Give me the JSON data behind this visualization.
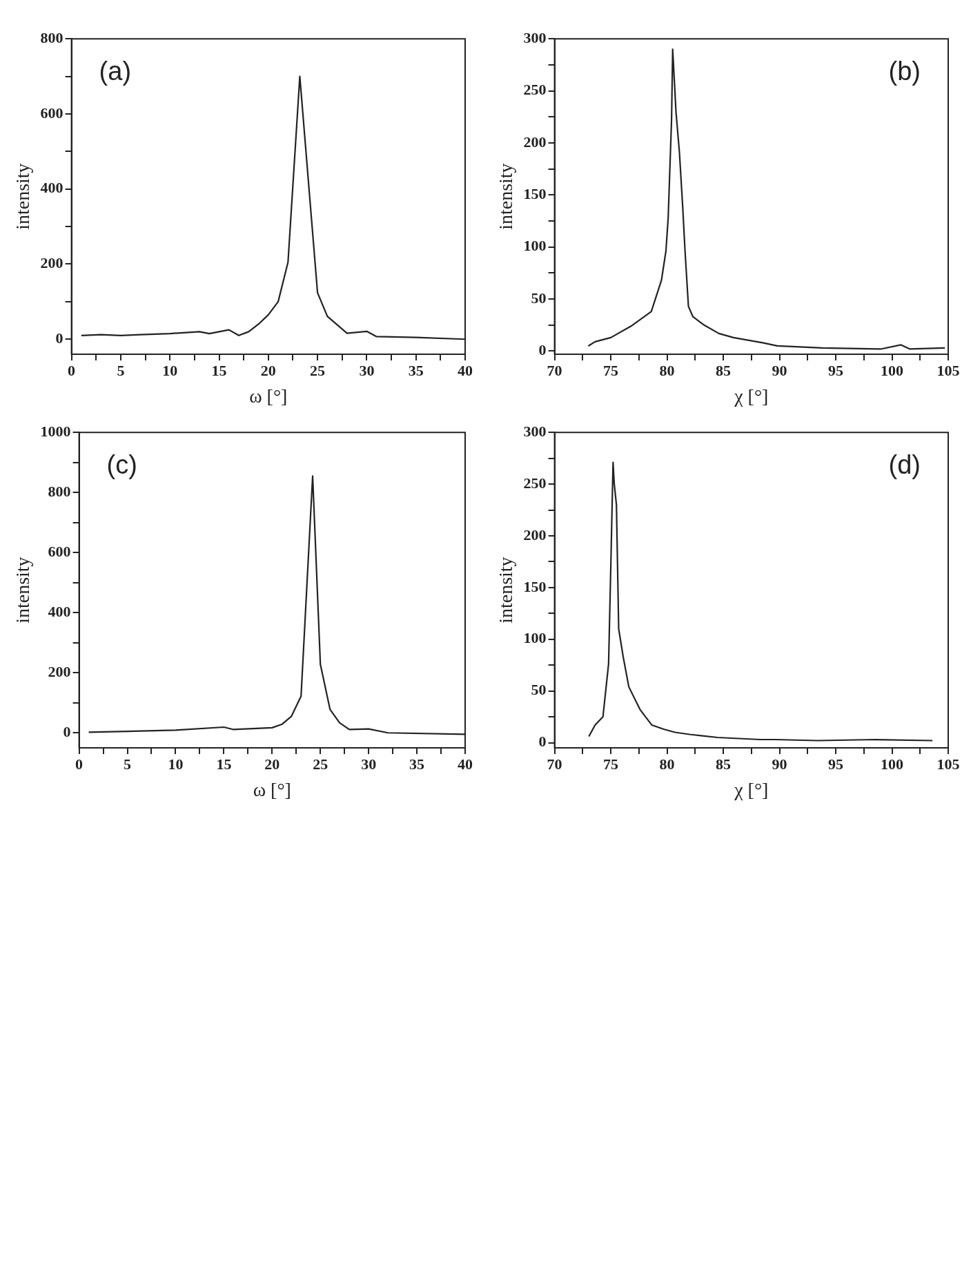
{
  "chart_data": [
    {
      "type": "line",
      "xlabel": "ω [°]",
      "ylabel": "intensity",
      "annotations": [
        "(a)"
      ],
      "xlim": [
        0,
        40
      ],
      "ylim": [
        -40,
        800
      ],
      "xticks": [
        0,
        {
          "value": 2.5,
          "label": null
        },
        5,
        {
          "value": 7.5,
          "label": null
        },
        10,
        {
          "value": 12.5,
          "label": null
        },
        15,
        {
          "value": 17.5,
          "label": null
        },
        20,
        {
          "value": 22.5,
          "label": null
        },
        25,
        {
          "value": 27.5,
          "label": null
        },
        30,
        {
          "value": 32.5,
          "label": null
        },
        35,
        {
          "value": 37.5,
          "label": null
        },
        40
      ],
      "yticks": [
        0,
        {
          "value": 100,
          "label": null
        },
        200,
        {
          "value": 300,
          "label": null
        },
        400,
        {
          "value": 500,
          "label": null
        },
        600,
        {
          "value": 700,
          "label": null
        },
        800
      ],
      "grid": false,
      "legend": false,
      "marker": "none",
      "line_style": "solid",
      "series": [
        {
          "color": "#222222",
          "x": [
            1,
            3,
            5,
            7,
            10,
            13,
            14,
            16,
            17,
            18,
            19,
            20,
            21,
            22,
            23.2,
            25,
            26,
            28,
            30,
            31,
            35,
            40
          ],
          "values": [
            10,
            12,
            10,
            12,
            15,
            20,
            15,
            25,
            10,
            20,
            40,
            65,
            100,
            205,
            700,
            124,
            61,
            16,
            21,
            7,
            5,
            0
          ]
        }
      ]
    },
    {
      "type": "line",
      "xlabel": "χ [°]",
      "ylabel": "intensity",
      "annotations": [
        "(b)"
      ],
      "xlim": [
        70,
        105
      ],
      "ylim": [
        -3,
        300
      ],
      "xticks": [
        70,
        {
          "value": 72.5,
          "label": null
        },
        75,
        {
          "value": 77.5,
          "label": null
        },
        80,
        {
          "value": 82.5,
          "label": null
        },
        85,
        {
          "value": 87.5,
          "label": null
        },
        90,
        {
          "value": 92.5,
          "label": null
        },
        95,
        {
          "value": 97.5,
          "label": null
        },
        100,
        {
          "value": 102.5,
          "label": null
        },
        105
      ],
      "yticks": [
        0,
        {
          "value": 25,
          "label": null
        },
        50,
        {
          "value": 75,
          "label": null
        },
        100,
        {
          "value": 125,
          "label": null
        },
        150,
        {
          "value": 175,
          "label": null
        },
        200,
        {
          "value": 225,
          "label": null
        },
        250,
        {
          "value": 275,
          "label": null
        },
        300
      ],
      "grid": false,
      "legend": false,
      "marker": "none",
      "line_style": "solid",
      "series": [
        {
          "color": "#222222",
          "x": [
            73,
            73.6,
            75,
            76.8,
            78.6,
            79.5,
            79.9,
            80.1,
            80.4,
            80.5,
            80.8,
            81.1,
            81.4,
            81.6,
            81.9,
            82.3,
            83.3,
            84.6,
            85.9,
            88.5,
            89.8,
            93.8,
            99,
            100.8,
            101.6,
            104.7
          ],
          "values": [
            5,
            9,
            13,
            24,
            38,
            68,
            96,
            128,
            222,
            290,
            229,
            191,
            137,
            96,
            43,
            33,
            25,
            17,
            13,
            8,
            5,
            3,
            2,
            6,
            2,
            3
          ]
        }
      ]
    },
    {
      "type": "line",
      "xlabel": "ω [°]",
      "ylabel": "intensity",
      "annotations": [
        "(c)"
      ],
      "xlim": [
        0,
        40
      ],
      "ylim": [
        -50,
        1000
      ],
      "xticks": [
        0,
        {
          "value": 2.5,
          "label": null
        },
        5,
        {
          "value": 7.5,
          "label": null
        },
        10,
        {
          "value": 12.5,
          "label": null
        },
        15,
        {
          "value": 17.5,
          "label": null
        },
        20,
        {
          "value": 22.5,
          "label": null
        },
        25,
        {
          "value": 27.5,
          "label": null
        },
        30,
        {
          "value": 32.5,
          "label": null
        },
        35,
        {
          "value": 37.5,
          "label": null
        },
        40
      ],
      "yticks": [
        0,
        {
          "value": 100,
          "label": null
        },
        200,
        {
          "value": 300,
          "label": null
        },
        400,
        {
          "value": 500,
          "label": null
        },
        600,
        {
          "value": 700,
          "label": null
        },
        800,
        {
          "value": 900,
          "label": null
        },
        1000
      ],
      "grid": false,
      "legend": false,
      "marker": "none",
      "line_style": "solid",
      "series": [
        {
          "color": "#222222",
          "x": [
            1,
            5,
            10,
            15,
            16,
            20,
            21,
            22,
            23,
            24.2,
            25,
            26,
            27,
            28,
            30,
            32,
            40
          ],
          "values": [
            2,
            5,
            9,
            19,
            11,
            17,
            28,
            55,
            122,
            855,
            228,
            78,
            33,
            11,
            13,
            0,
            -5
          ]
        }
      ]
    },
    {
      "type": "line",
      "xlabel": "χ [°]",
      "ylabel": "intensity",
      "annotations": [
        "(d)"
      ],
      "xlim": [
        70,
        105
      ],
      "ylim": [
        -5,
        300
      ],
      "xticks": [
        70,
        {
          "value": 72.5,
          "label": null
        },
        75,
        {
          "value": 77.5,
          "label": null
        },
        80,
        {
          "value": 82.5,
          "label": null
        },
        85,
        {
          "value": 87.5,
          "label": null
        },
        90,
        {
          "value": 92.5,
          "label": null
        },
        95,
        {
          "value": 97.5,
          "label": null
        },
        100,
        {
          "value": 102.5,
          "label": null
        },
        105
      ],
      "yticks": [
        0,
        {
          "value": 25,
          "label": null
        },
        50,
        {
          "value": 75,
          "label": null
        },
        100,
        {
          "value": 125,
          "label": null
        },
        150,
        {
          "value": 175,
          "label": null
        },
        200,
        {
          "value": 225,
          "label": null
        },
        250,
        {
          "value": 275,
          "label": null
        },
        300
      ],
      "grid": false,
      "legend": false,
      "marker": "none",
      "line_style": "solid",
      "series": [
        {
          "color": "#222222",
          "x": [
            73.05,
            73.6,
            74.3,
            74.8,
            75.0,
            75.2,
            75.3,
            75.5,
            75.7,
            76.1,
            76.6,
            77.6,
            78.65,
            79.7,
            80.7,
            82,
            84.5,
            88.3,
            89.6,
            93.4,
            98.5,
            103.6
          ],
          "values": [
            6,
            17,
            25,
            76,
            171,
            271,
            251,
            230,
            110,
            83,
            54,
            32,
            17,
            13,
            10,
            8,
            5,
            3,
            3,
            2,
            3,
            2
          ]
        }
      ]
    }
  ]
}
